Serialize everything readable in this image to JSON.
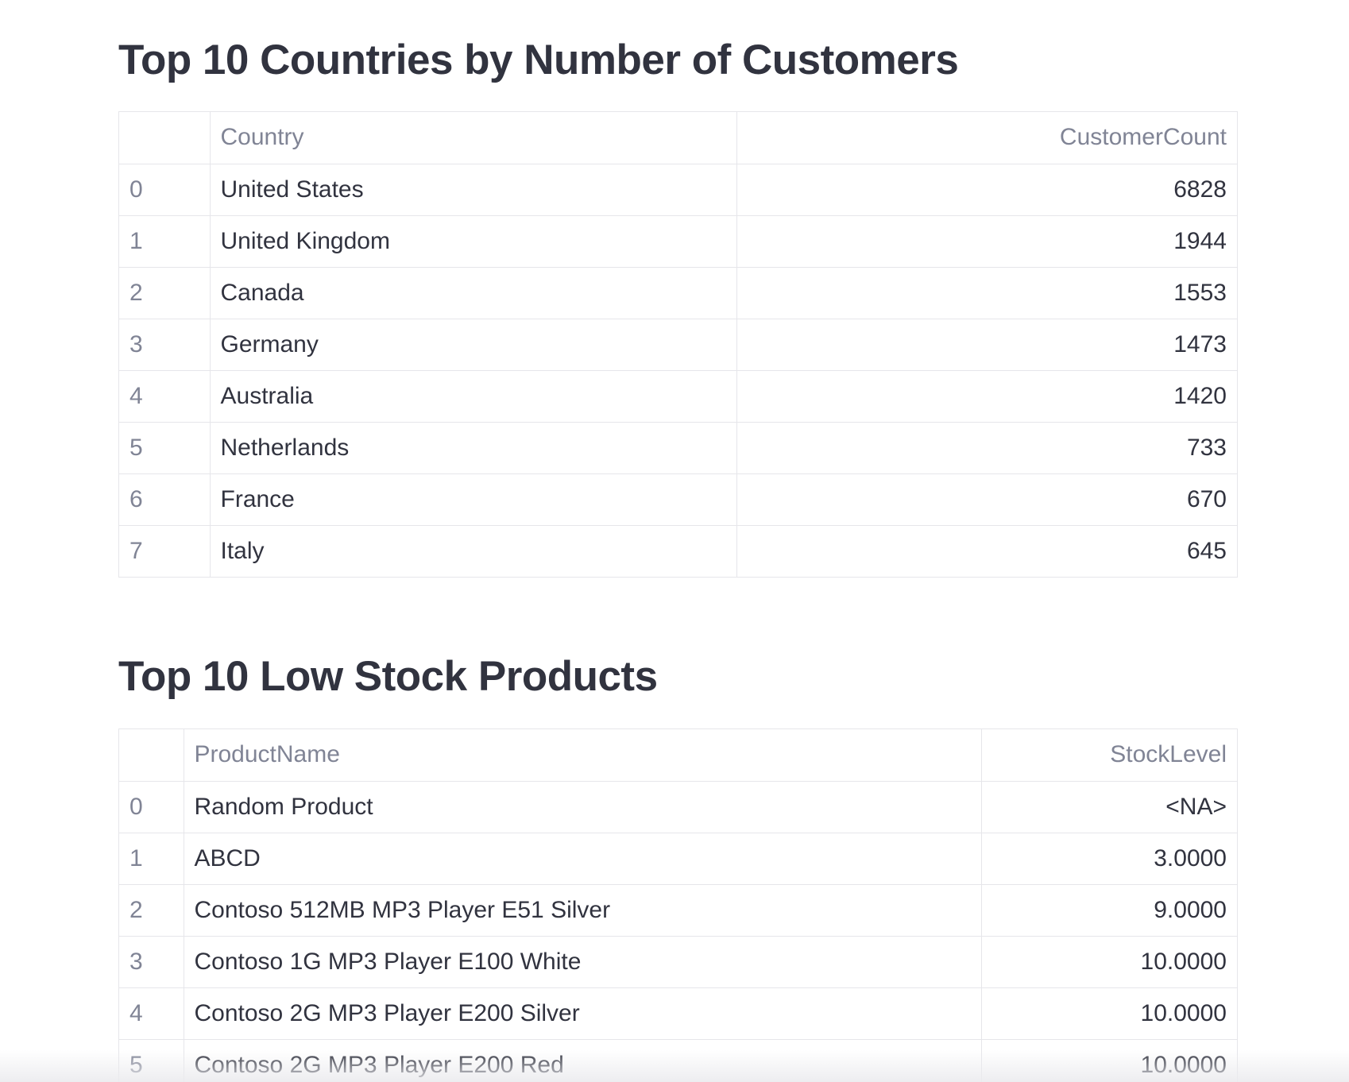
{
  "customers_section": {
    "title": "Top 10 Countries by Number of Customers",
    "columns": [
      "",
      "Country",
      "CustomerCount"
    ],
    "rows": [
      {
        "index": "0",
        "country": "United States",
        "count": "6828"
      },
      {
        "index": "1",
        "country": "United Kingdom",
        "count": "1944"
      },
      {
        "index": "2",
        "country": "Canada",
        "count": "1553"
      },
      {
        "index": "3",
        "country": "Germany",
        "count": "1473"
      },
      {
        "index": "4",
        "country": "Australia",
        "count": "1420"
      },
      {
        "index": "5",
        "country": "Netherlands",
        "count": "733"
      },
      {
        "index": "6",
        "country": "France",
        "count": "670"
      },
      {
        "index": "7",
        "country": "Italy",
        "count": "645"
      }
    ]
  },
  "stock_section": {
    "title": "Top 10 Low Stock Products",
    "columns": [
      "",
      "ProductName",
      "StockLevel"
    ],
    "rows": [
      {
        "index": "0",
        "product": "Random Product",
        "stock": "<NA>"
      },
      {
        "index": "1",
        "product": "ABCD",
        "stock": "3.0000"
      },
      {
        "index": "2",
        "product": "Contoso 512MB MP3 Player E51 Silver",
        "stock": "9.0000"
      },
      {
        "index": "3",
        "product": "Contoso 1G MP3 Player E100 White",
        "stock": "10.0000"
      },
      {
        "index": "4",
        "product": "Contoso 2G MP3 Player E200 Silver",
        "stock": "10.0000"
      },
      {
        "index": "5",
        "product": "Contoso 2G MP3 Player E200 Red",
        "stock": "10.0000"
      }
    ]
  }
}
